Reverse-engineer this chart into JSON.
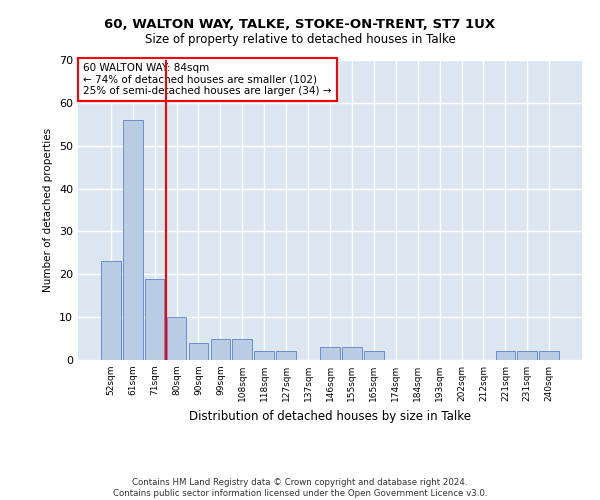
{
  "title1": "60, WALTON WAY, TALKE, STOKE-ON-TRENT, ST7 1UX",
  "title2": "Size of property relative to detached houses in Talke",
  "xlabel": "Distribution of detached houses by size in Talke",
  "ylabel": "Number of detached properties",
  "categories": [
    "52sqm",
    "61sqm",
    "71sqm",
    "80sqm",
    "90sqm",
    "99sqm",
    "108sqm",
    "118sqm",
    "127sqm",
    "137sqm",
    "146sqm",
    "155sqm",
    "165sqm",
    "174sqm",
    "184sqm",
    "193sqm",
    "202sqm",
    "212sqm",
    "221sqm",
    "231sqm",
    "240sqm"
  ],
  "values": [
    23,
    56,
    19,
    10,
    4,
    5,
    5,
    2,
    2,
    0,
    3,
    3,
    2,
    0,
    0,
    0,
    0,
    0,
    2,
    2,
    2
  ],
  "bar_color": "#b8cce4",
  "bar_edge_color": "#4472c4",
  "background_color": "#dce6f1",
  "annotation_text": "60 WALTON WAY: 84sqm\n← 74% of detached houses are smaller (102)\n25% of semi-detached houses are larger (34) →",
  "vline_x_index": 2.5,
  "annotation_box_color": "white",
  "annotation_box_edge_color": "red",
  "vline_color": "red",
  "footer": "Contains HM Land Registry data © Crown copyright and database right 2024.\nContains public sector information licensed under the Open Government Licence v3.0.",
  "ylim": [
    0,
    70
  ],
  "yticks": [
    0,
    10,
    20,
    30,
    40,
    50,
    60,
    70
  ]
}
